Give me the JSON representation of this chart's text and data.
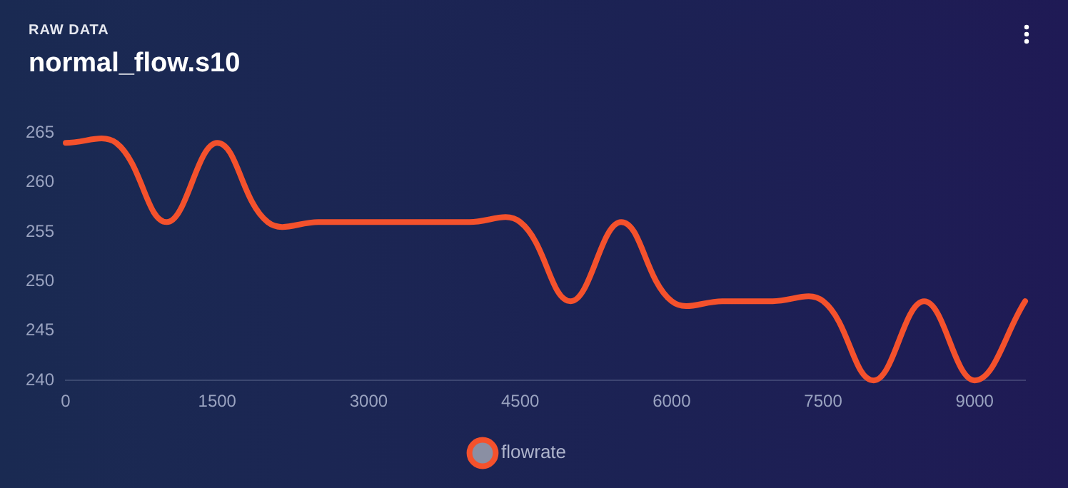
{
  "chart_data": {
    "type": "line",
    "subtitle": "RAW DATA",
    "title": "normal_flow.s10",
    "x": [
      0,
      500,
      1000,
      1500,
      2000,
      2500,
      3000,
      3500,
      4000,
      4500,
      5000,
      5500,
      6000,
      6500,
      7000,
      7500,
      8000,
      8500,
      9000,
      9500
    ],
    "series": [
      {
        "name": "flowrate",
        "color": "#f4512c",
        "values": [
          264,
          264,
          256,
          264,
          256,
          256,
          256,
          256,
          256,
          256,
          248,
          256,
          248,
          248,
          248,
          248,
          240,
          248,
          240,
          248
        ]
      }
    ],
    "xlim": [
      0,
      9500
    ],
    "xticks": [
      0,
      1500,
      3000,
      4500,
      6000,
      7500,
      9000
    ],
    "ylim": [
      240,
      265
    ],
    "yticks": [
      240,
      245,
      250,
      255,
      260,
      265
    ],
    "grid": false,
    "legend": "bottom",
    "marker": "none",
    "line_style": "solid"
  }
}
